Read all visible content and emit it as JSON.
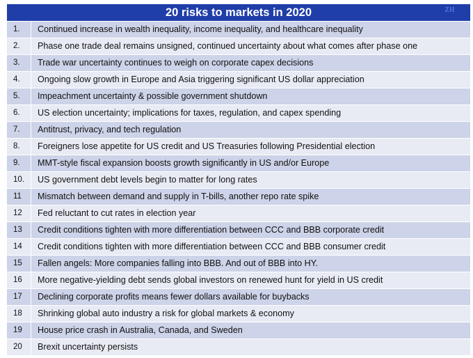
{
  "title": "20 risks to markets in 2020",
  "watermark": "ZH",
  "risks": [
    {
      "num": "1.",
      "text": "Continued increase in wealth inequality, income inequality, and healthcare inequality"
    },
    {
      "num": "2.",
      "text": "Phase one trade deal remains unsigned, continued uncertainty about what comes after phase one"
    },
    {
      "num": "3.",
      "text": "Trade war uncertainty continues to weigh on corporate capex decisions"
    },
    {
      "num": "4.",
      "text": "Ongoing slow growth in Europe and Asia triggering significant US dollar appreciation"
    },
    {
      "num": "5.",
      "text": "Impeachment uncertainty & possible government shutdown"
    },
    {
      "num": "6.",
      "text": "US election uncertainty; implications for taxes, regulation, and capex spending"
    },
    {
      "num": "7.",
      "text": "Antitrust, privacy, and tech regulation"
    },
    {
      "num": "8.",
      "text": "Foreigners lose appetite for US credit and US Treasuries following Presidential election"
    },
    {
      "num": "9.",
      "text": "MMT-style fiscal expansion boosts growth significantly in US and/or Europe"
    },
    {
      "num": "10.",
      "text": "US government debt levels begin to matter for long rates"
    },
    {
      "num": "11",
      "text": "Mismatch between demand and supply in T-bills, another repo rate spike"
    },
    {
      "num": "12",
      "text": "Fed reluctant to cut rates in election year"
    },
    {
      "num": "13",
      "text": "Credit conditions tighten with more differentiation between CCC and BBB corporate credit"
    },
    {
      "num": "14",
      "text": "Credit conditions tighten with more differentiation between CCC and BBB consumer credit"
    },
    {
      "num": "15",
      "text": "Fallen angels: More companies falling into BBB. And out of BBB into HY."
    },
    {
      "num": "16",
      "text": "More negative-yielding debt sends global investors on renewed hunt for yield in US credit"
    },
    {
      "num": "17",
      "text": "Declining corporate profits means fewer dollars available for buybacks"
    },
    {
      "num": "18",
      "text": "Shrinking global auto industry a risk for global markets & economy"
    },
    {
      "num": "19",
      "text": "House price crash in Australia, Canada, and Sweden"
    },
    {
      "num": "20",
      "text": "Brexit uncertainty persists"
    }
  ]
}
